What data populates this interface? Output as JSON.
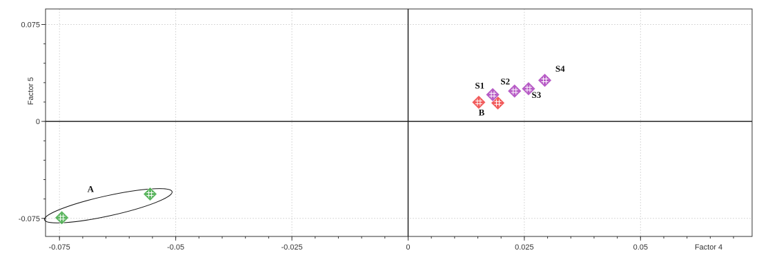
{
  "chart_data": {
    "type": "scatter",
    "title": "",
    "xlabel": "Factor 4",
    "ylabel": "Factor 5",
    "xlim": [
      -0.078,
      0.074
    ],
    "ylim": [
      -0.089,
      0.087
    ],
    "x_ticks": [
      {
        "value": -0.075,
        "label": "-0.075"
      },
      {
        "value": -0.05,
        "label": "-0.05"
      },
      {
        "value": -0.025,
        "label": "-0.025"
      },
      {
        "value": 0,
        "label": "0"
      },
      {
        "value": 0.025,
        "label": "0.025"
      },
      {
        "value": 0.05,
        "label": "0.05"
      }
    ],
    "y_ticks": [
      {
        "value": 0.075,
        "label": "0.075"
      },
      {
        "value": 0,
        "label": "0"
      },
      {
        "value": -0.075,
        "label": "-0.075"
      }
    ],
    "grid": true,
    "series": [
      {
        "color": "#4caf50",
        "points": [
          {
            "x": -0.0745,
            "y": -0.0745
          },
          {
            "x": -0.0555,
            "y": -0.0562
          }
        ]
      },
      {
        "color": "#f04a4a",
        "points": [
          {
            "x": 0.0152,
            "y": 0.0148
          },
          {
            "x": 0.0193,
            "y": 0.0143
          }
        ]
      },
      {
        "color": "#b04bc0",
        "points": [
          {
            "x": 0.0182,
            "y": 0.0207
          },
          {
            "x": 0.0229,
            "y": 0.0235
          },
          {
            "x": 0.0259,
            "y": 0.0253
          },
          {
            "x": 0.0294,
            "y": 0.0318
          }
        ]
      }
    ],
    "annotations": [
      {
        "text": "A",
        "x": -0.0683,
        "y": -0.0545
      },
      {
        "text": "B",
        "x": 0.0158,
        "y": 0.0045
      },
      {
        "text": "S1",
        "x": 0.0154,
        "y": 0.0255
      },
      {
        "text": "S2",
        "x": 0.0209,
        "y": 0.0285
      },
      {
        "text": "S3",
        "x": 0.0276,
        "y": 0.0182
      },
      {
        "text": "S4",
        "x": 0.0327,
        "y": 0.0385
      }
    ],
    "ellipse": {
      "x1": -0.0762,
      "y1": -0.0745,
      "x2": -0.0528,
      "y2": -0.056,
      "ry": 0.0078
    }
  }
}
